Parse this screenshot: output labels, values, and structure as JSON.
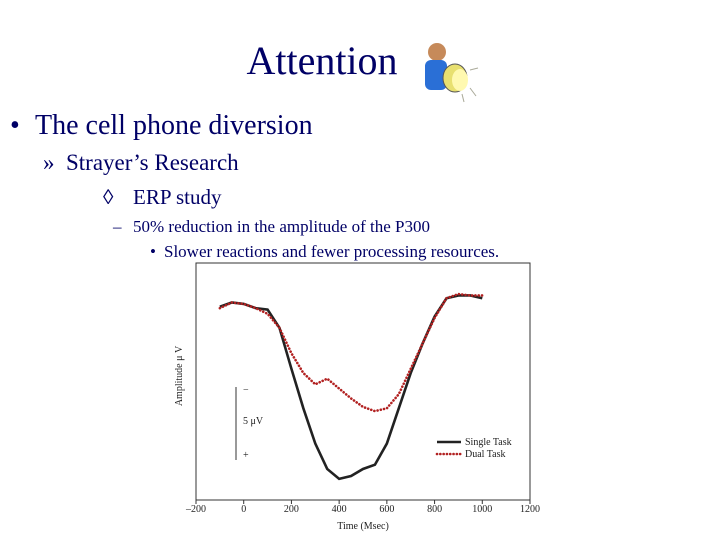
{
  "slide": {
    "title": "Attention",
    "bullets": [
      {
        "marker": "•",
        "text": "The cell phone diversion"
      },
      {
        "marker": "»",
        "text": "Strayer’s Research"
      },
      {
        "marker": "◊",
        "text": "ERP study"
      },
      {
        "marker": "–",
        "text": "50% reduction in the amplitude of the P300"
      },
      {
        "marker": "•",
        "text": "Slower reactions and fewer processing resources."
      }
    ]
  },
  "chart_data": {
    "type": "line",
    "x_label": "Time (Msec)",
    "y_label": "Amplitude μ V",
    "x": [
      -100,
      -50,
      0,
      50,
      100,
      150,
      200,
      250,
      300,
      350,
      400,
      450,
      500,
      550,
      600,
      650,
      700,
      750,
      800,
      850,
      900,
      950,
      1000
    ],
    "series": [
      {
        "name": "Single Task",
        "color": "#222222",
        "style": "solid",
        "values": [
          -0.1,
          -0.4,
          -0.3,
          0,
          0.1,
          1.4,
          4.3,
          7.1,
          9.6,
          11.4,
          12.1,
          11.9,
          11.4,
          11.1,
          9.6,
          7.1,
          4.6,
          2.5,
          0.6,
          -0.7,
          -0.9,
          -0.9,
          -0.7
        ]
      },
      {
        "name": "Dual Task",
        "color": "#b22222",
        "style": "dotted",
        "values": [
          0,
          -0.4,
          -0.3,
          0,
          0.4,
          1.4,
          3.2,
          4.6,
          5.4,
          5.0,
          5.7,
          6.4,
          7.0,
          7.3,
          7.1,
          6.1,
          4.3,
          2.5,
          0.7,
          -0.7,
          -1.0,
          -0.9,
          -0.9
        ]
      }
    ],
    "xlim": [
      -200,
      1200
    ],
    "xticks": [
      {
        "value": -200,
        "label": "–200"
      },
      0,
      200,
      400,
      600,
      800,
      1000,
      1200
    ],
    "ylim": [
      -3.2,
      13.6
    ],
    "y_inverted": true,
    "scale_bar": {
      "top": "−",
      "label": "5 μV",
      "bottom": "+"
    },
    "legend": "lower-right"
  }
}
